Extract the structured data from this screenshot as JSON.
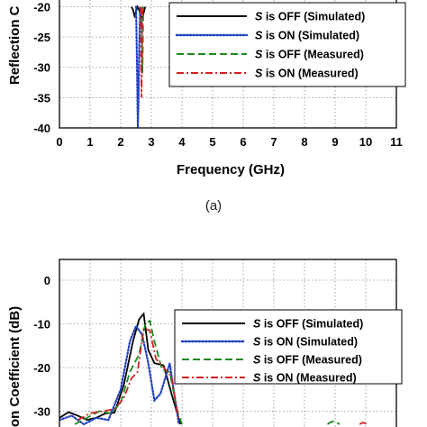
{
  "chart_data": [
    {
      "type": "line",
      "caption": "(a)",
      "xlabel": "Frequency (GHz)",
      "ylabel_visible": "Reflection C",
      "xlim": [
        0,
        11
      ],
      "ylim": [
        -40,
        -20
      ],
      "xticks": [
        "0",
        "1",
        "2",
        "3",
        "4",
        "5",
        "6",
        "7",
        "8",
        "9",
        "10",
        "11"
      ],
      "yticks": [
        "-20",
        "-25",
        "-30",
        "-35",
        "-40"
      ],
      "grid": true,
      "legend_position": "top-right",
      "series": [
        {
          "name": "S is OFF (Simulated)",
          "color": "#000000",
          "style": "solid",
          "x": [
            2.35,
            2.4,
            2.45,
            2.5,
            2.55,
            2.6,
            2.65,
            2.7,
            2.75,
            2.8
          ],
          "y": [
            -20,
            -20.5,
            -21.5,
            -20.8,
            -20,
            -20.5,
            -21.5,
            -22,
            -21,
            -20
          ]
        },
        {
          "name": "S is ON (Simulated)",
          "color": "#1f3fbf",
          "style": "dotted",
          "x": [
            2.5,
            2.52,
            2.54,
            2.56,
            2.58,
            2.6,
            2.62,
            2.64
          ],
          "y": [
            -20,
            -26,
            -33,
            -40,
            -36,
            -28,
            -23,
            -20
          ]
        },
        {
          "name": "S is OFF (Measured)",
          "color": "#1e8a1e",
          "style": "dashed",
          "x": [
            2.68,
            2.69,
            2.7,
            2.71,
            2.72,
            2.73,
            2.74
          ],
          "y": [
            -20,
            -24,
            -28,
            -31,
            -27,
            -23,
            -20
          ]
        },
        {
          "name": "S is ON (Measured)",
          "color": "#d42020",
          "style": "dashdot",
          "x": [
            2.65,
            2.66,
            2.67,
            2.68,
            2.69,
            2.7,
            2.71
          ],
          "y": [
            -20,
            -25,
            -30,
            -35,
            -29,
            -24,
            -20
          ]
        }
      ]
    },
    {
      "type": "line",
      "caption": "",
      "xlabel": "",
      "ylabel_visible": "on Coefficient (dB)",
      "xlim": [
        0,
        11
      ],
      "ylim": [
        -30,
        0
      ],
      "xticks": [],
      "yticks": [
        "0",
        "-10",
        "-20",
        "-30"
      ],
      "grid": true,
      "legend_position": "top-right",
      "series": [
        {
          "name": "S is OFF (Simulated)",
          "color": "#000000",
          "style": "solid",
          "x": [
            0,
            0.3,
            0.6,
            0.9,
            1.2,
            1.5,
            1.8,
            2.1,
            2.4,
            2.6,
            2.75,
            2.9,
            3.1,
            3.4,
            3.7,
            3.95
          ],
          "y": [
            -31.5,
            -30.2,
            -31,
            -32,
            -31.5,
            -30.5,
            -30.3,
            -24,
            -14,
            -9,
            -7.7,
            -16,
            -19,
            -19.5,
            -27,
            -33
          ]
        },
        {
          "name": "S is ON (Simulated)",
          "color": "#1f3fbf",
          "style": "dotted",
          "x": [
            0,
            0.4,
            0.8,
            1.2,
            1.6,
            2.0,
            2.3,
            2.5,
            2.7,
            2.9,
            3.1,
            3.3,
            3.6,
            3.9
          ],
          "y": [
            -32,
            -31,
            -33,
            -31.5,
            -32,
            -25,
            -14,
            -10.5,
            -12.5,
            -19,
            -27.5,
            -26,
            -19,
            -33
          ]
        },
        {
          "name": "S is OFF (Measured)",
          "color": "#1e8a1e",
          "style": "dashed",
          "x": [
            0.5,
            0.9,
            1.3,
            1.7,
            2.0,
            2.3,
            2.6,
            2.8,
            2.95,
            3.1,
            3.35,
            3.6,
            3.85,
            4.0
          ],
          "y": [
            -33,
            -31.5,
            -30,
            -30.5,
            -28,
            -21,
            -17,
            -10,
            -9.3,
            -14,
            -20.5,
            -21,
            -30,
            -33
          ]
        },
        {
          "name": "S is ON (Measured)",
          "color": "#d42020",
          "style": "dashdot",
          "x": [
            0.6,
            1.0,
            1.4,
            1.8,
            2.1,
            2.35,
            2.55,
            2.75,
            2.95,
            3.15,
            3.4,
            3.65,
            3.9
          ],
          "y": [
            -32,
            -30.5,
            -30,
            -29.5,
            -27,
            -22.5,
            -21,
            -11,
            -11.5,
            -18,
            -20,
            -22,
            -32
          ]
        },
        {
          "name": "",
          "color": "#1e8a1e",
          "style": "dashed",
          "x": [
            8.75,
            8.85,
            8.95,
            9.05,
            9.15
          ],
          "y": [
            -33,
            -32.5,
            -32.3,
            -32.6,
            -33
          ]
        },
        {
          "name": "",
          "color": "#d42020",
          "style": "dashdot",
          "x": [
            9.8,
            9.9,
            10.0,
            10.1
          ],
          "y": [
            -33,
            -32.6,
            -32.8,
            -33
          ]
        }
      ]
    }
  ],
  "legend_prefix": "S"
}
